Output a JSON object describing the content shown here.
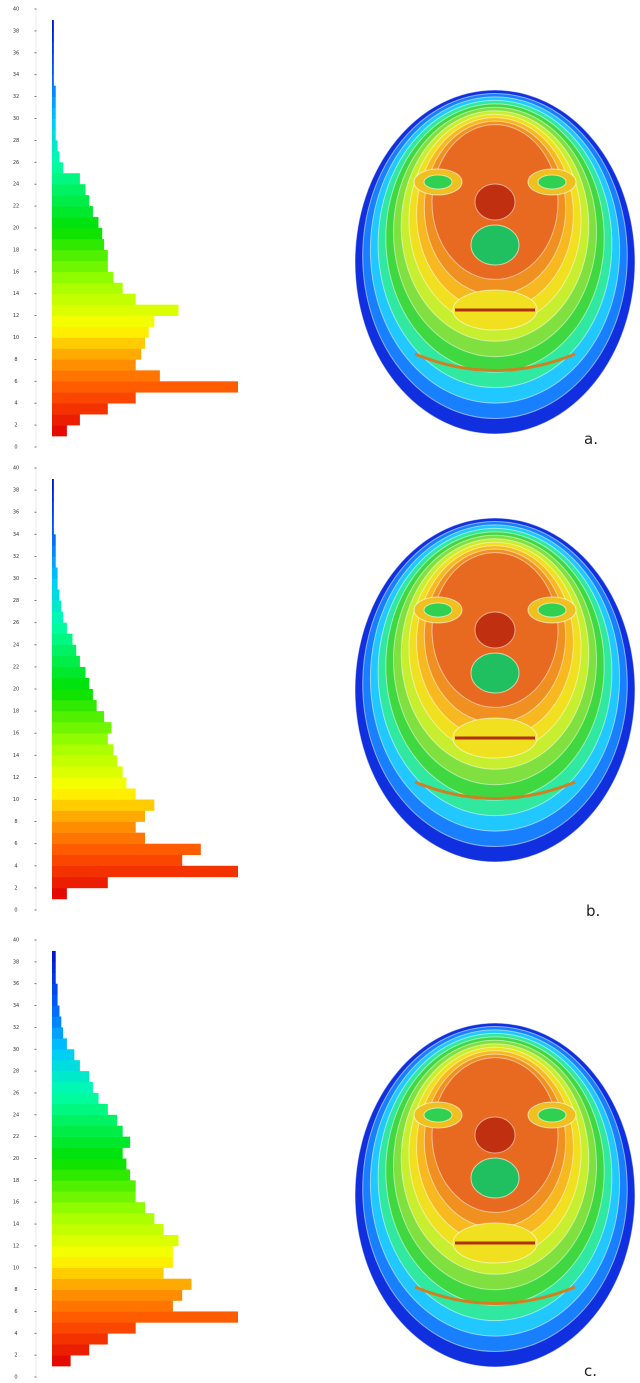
{
  "chart_data": [
    {
      "type": "histogram",
      "orientation": "horizontal",
      "caption": "a.",
      "bins": [
        1,
        2,
        3,
        4,
        5,
        6,
        7,
        8,
        9,
        10,
        11,
        12,
        13,
        14,
        15,
        16,
        17,
        18,
        19,
        20,
        21,
        22,
        23,
        24,
        25,
        26,
        27,
        28,
        29,
        30,
        31,
        32,
        33,
        34,
        35,
        36,
        37,
        38,
        39
      ],
      "values": [
        8,
        15,
        30,
        45,
        100,
        58,
        45,
        48,
        50,
        52,
        55,
        68,
        45,
        38,
        33,
        30,
        30,
        28,
        27,
        25,
        22,
        20,
        18,
        15,
        6,
        4,
        3,
        2,
        2,
        2,
        2,
        2,
        1,
        1,
        1,
        1,
        1,
        1
      ],
      "ylim": [
        0,
        40
      ],
      "yticks": [
        0,
        2,
        4,
        6,
        8,
        10,
        12,
        14,
        16,
        18,
        20,
        22,
        24,
        26,
        28,
        30,
        32,
        34,
        36,
        38,
        40
      ],
      "xlim": [
        0,
        100
      ],
      "colorscale": [
        {
          "value": 1,
          "color": "#e00000"
        },
        {
          "value": 5,
          "color": "#ff5000"
        },
        {
          "value": 8,
          "color": "#ff9900"
        },
        {
          "value": 11,
          "color": "#ffff00"
        },
        {
          "value": 15,
          "color": "#a0ff00"
        },
        {
          "value": 20,
          "color": "#00e000"
        },
        {
          "value": 26,
          "color": "#00ffaa"
        },
        {
          "value": 30,
          "color": "#00c8ff"
        },
        {
          "value": 34,
          "color": "#0060ff"
        },
        {
          "value": 40,
          "color": "#0000c0"
        }
      ]
    },
    {
      "type": "histogram",
      "orientation": "horizontal",
      "caption": "b.",
      "bins": [
        1,
        2,
        3,
        4,
        5,
        6,
        7,
        8,
        9,
        10,
        11,
        12,
        13,
        14,
        15,
        16,
        17,
        18,
        19,
        20,
        21,
        22,
        23,
        24,
        25,
        26,
        27,
        28,
        29,
        30,
        31,
        32,
        33,
        34,
        35,
        36,
        37,
        38,
        39
      ],
      "values": [
        8,
        30,
        100,
        70,
        80,
        50,
        45,
        50,
        55,
        45,
        40,
        38,
        35,
        33,
        30,
        32,
        28,
        24,
        22,
        20,
        18,
        15,
        13,
        11,
        8,
        6,
        5,
        4,
        3,
        3,
        2,
        2,
        2,
        1,
        1,
        1,
        1,
        1
      ],
      "ylim": [
        0,
        40
      ],
      "yticks": [
        0,
        2,
        4,
        6,
        8,
        10,
        12,
        14,
        16,
        18,
        20,
        22,
        24,
        26,
        28,
        30,
        32,
        34,
        36,
        38,
        40
      ],
      "xlim": [
        0,
        100
      ],
      "colorscale": [
        {
          "value": 1,
          "color": "#e00000"
        },
        {
          "value": 5,
          "color": "#ff5000"
        },
        {
          "value": 8,
          "color": "#ff9900"
        },
        {
          "value": 11,
          "color": "#ffff00"
        },
        {
          "value": 15,
          "color": "#a0ff00"
        },
        {
          "value": 20,
          "color": "#00e000"
        },
        {
          "value": 26,
          "color": "#00ffaa"
        },
        {
          "value": 30,
          "color": "#00c8ff"
        },
        {
          "value": 34,
          "color": "#0060ff"
        },
        {
          "value": 40,
          "color": "#0000c0"
        }
      ]
    },
    {
      "type": "histogram",
      "orientation": "horizontal",
      "caption": "c.",
      "bins": [
        1,
        2,
        3,
        4,
        5,
        6,
        7,
        8,
        9,
        10,
        11,
        12,
        13,
        14,
        15,
        16,
        17,
        18,
        19,
        20,
        21,
        22,
        23,
        24,
        25,
        26,
        27,
        28,
        29,
        30,
        31,
        32,
        33,
        34,
        35,
        36,
        37,
        38,
        39
      ],
      "values": [
        10,
        20,
        30,
        45,
        100,
        65,
        70,
        75,
        60,
        65,
        65,
        68,
        60,
        55,
        50,
        45,
        45,
        42,
        40,
        38,
        42,
        38,
        35,
        30,
        25,
        22,
        20,
        15,
        12,
        8,
        6,
        5,
        4,
        3,
        3,
        2,
        2,
        2
      ],
      "ylim": [
        0,
        40
      ],
      "yticks": [
        0,
        2,
        4,
        6,
        8,
        10,
        12,
        14,
        16,
        18,
        20,
        22,
        24,
        26,
        28,
        30,
        32,
        34,
        36,
        38,
        40
      ],
      "xlim": [
        0,
        100
      ],
      "colorscale": [
        {
          "value": 1,
          "color": "#e00000"
        },
        {
          "value": 5,
          "color": "#ff5000"
        },
        {
          "value": 8,
          "color": "#ff9900"
        },
        {
          "value": 11,
          "color": "#ffff00"
        },
        {
          "value": 15,
          "color": "#a0ff00"
        },
        {
          "value": 20,
          "color": "#00e000"
        },
        {
          "value": 26,
          "color": "#00ffaa"
        },
        {
          "value": 30,
          "color": "#00c8ff"
        },
        {
          "value": 34,
          "color": "#0060ff"
        },
        {
          "value": 40,
          "color": "#0000c0"
        }
      ]
    }
  ]
}
